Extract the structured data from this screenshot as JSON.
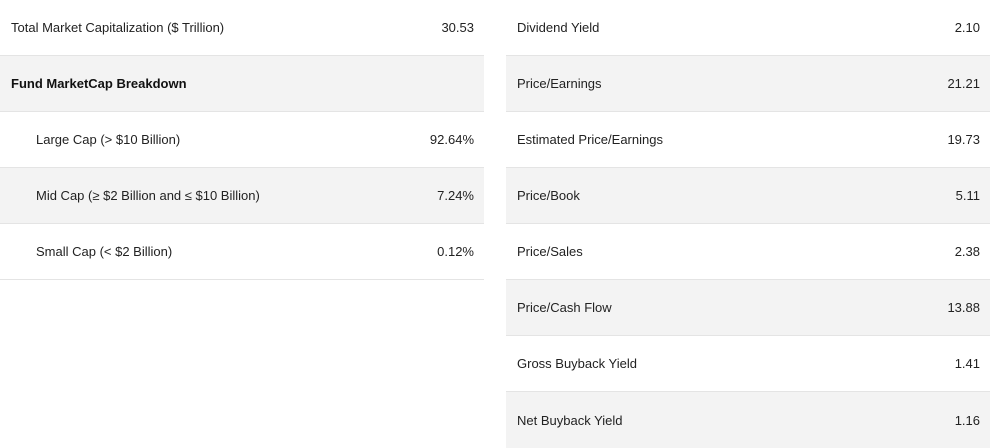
{
  "left_table": {
    "total": {
      "label": "Total Market Capitalization ($ Trillion)",
      "value": "30.53"
    },
    "breakdown_header": {
      "label": "Fund MarketCap Breakdown"
    },
    "large_cap": {
      "label": "Large Cap (> $10 Billion)",
      "value": "92.64%"
    },
    "mid_cap": {
      "label": "Mid Cap (≥ $2 Billion and ≤ $10 Billion)",
      "value": "7.24%"
    },
    "small_cap": {
      "label": "Small Cap (< $2 Billion)",
      "value": "0.12%"
    }
  },
  "right_table": {
    "dividend_yield": {
      "label": "Dividend Yield",
      "value": "2.10"
    },
    "price_earnings": {
      "label": "Price/Earnings",
      "value": "21.21"
    },
    "est_price_earnings": {
      "label": "Estimated Price/Earnings",
      "value": "19.73"
    },
    "price_book": {
      "label": "Price/Book",
      "value": "5.11"
    },
    "price_sales": {
      "label": "Price/Sales",
      "value": "2.38"
    },
    "price_cash_flow": {
      "label": "Price/Cash Flow",
      "value": "13.88"
    },
    "gross_buyback_yield": {
      "label": "Gross Buyback Yield",
      "value": "1.41"
    },
    "net_buyback_yield": {
      "label": "Net Buyback Yield",
      "value": "1.16"
    }
  }
}
